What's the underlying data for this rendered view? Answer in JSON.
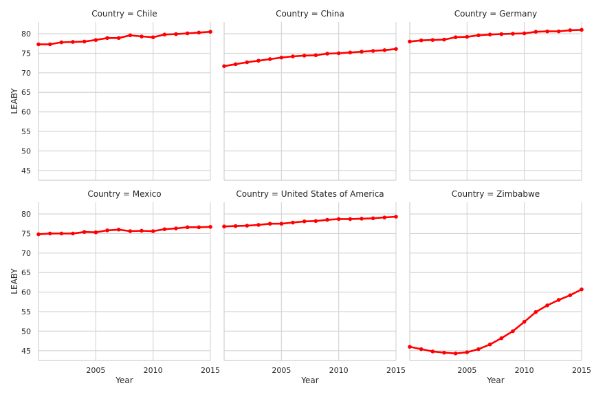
{
  "chart_data": {
    "type": "line",
    "ylabel": "LEABY",
    "xlabel": "Year",
    "xlim": [
      2000,
      2015
    ],
    "ylim": [
      42.5,
      83
    ],
    "x_ticks": [
      2005,
      2010,
      2015
    ],
    "y_ticks": [
      45,
      50,
      55,
      60,
      65,
      70,
      75,
      80
    ],
    "grid": true,
    "line_color": "#ff0000",
    "x": [
      2000,
      2001,
      2002,
      2003,
      2004,
      2005,
      2006,
      2007,
      2008,
      2009,
      2010,
      2011,
      2012,
      2013,
      2014,
      2015
    ],
    "facets": [
      {
        "title": "Country = Chile",
        "values": [
          77.3,
          77.3,
          77.8,
          77.9,
          78.0,
          78.4,
          78.9,
          78.9,
          79.6,
          79.3,
          79.1,
          79.8,
          79.9,
          80.1,
          80.3,
          80.5
        ]
      },
      {
        "title": "Country = China",
        "values": [
          71.7,
          72.2,
          72.7,
          73.1,
          73.5,
          73.9,
          74.2,
          74.4,
          74.5,
          74.9,
          75.0,
          75.2,
          75.4,
          75.6,
          75.8,
          76.1
        ]
      },
      {
        "title": "Country = Germany",
        "values": [
          78.0,
          78.3,
          78.4,
          78.5,
          79.1,
          79.2,
          79.6,
          79.8,
          79.9,
          80.0,
          80.1,
          80.5,
          80.6,
          80.6,
          80.9,
          81.0
        ]
      },
      {
        "title": "Country = Mexico",
        "values": [
          74.8,
          75.0,
          75.0,
          75.0,
          75.4,
          75.3,
          75.8,
          76.0,
          75.6,
          75.7,
          75.6,
          76.1,
          76.3,
          76.6,
          76.6,
          76.7
        ]
      },
      {
        "title": "Country = United States of America",
        "values": [
          76.8,
          76.9,
          77.0,
          77.2,
          77.5,
          77.5,
          77.8,
          78.1,
          78.2,
          78.5,
          78.7,
          78.7,
          78.8,
          78.9,
          79.1,
          79.3
        ]
      },
      {
        "title": "Country = Zimbabwe",
        "values": [
          46.0,
          45.4,
          44.8,
          44.5,
          44.3,
          44.6,
          45.4,
          46.6,
          48.2,
          50.0,
          52.4,
          54.9,
          56.6,
          58.0,
          59.2,
          60.7
        ]
      }
    ]
  }
}
